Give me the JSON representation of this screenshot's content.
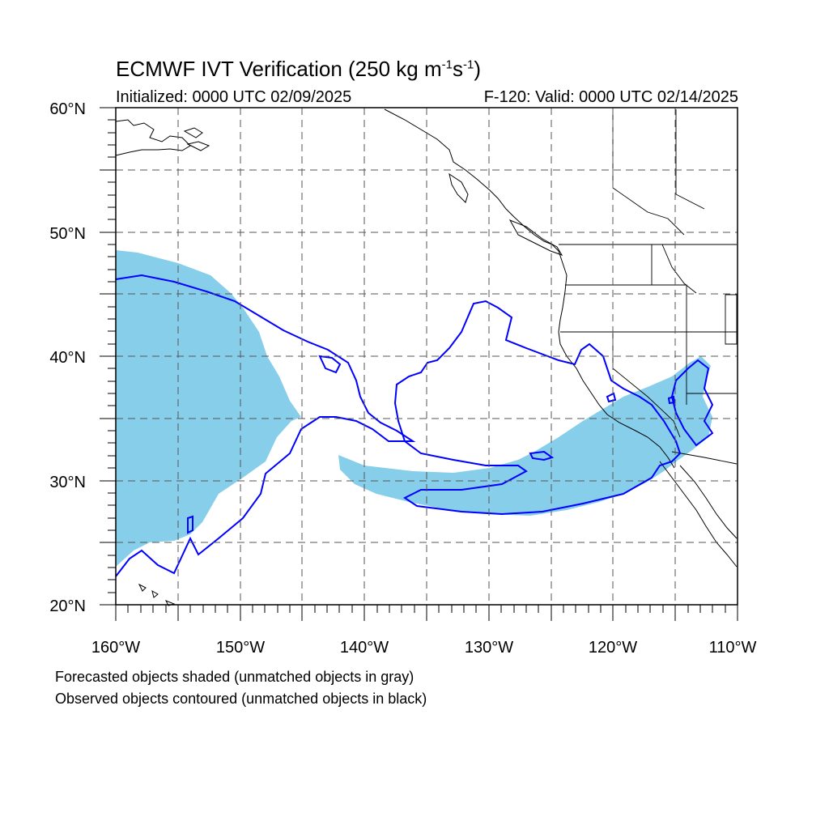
{
  "header": {
    "title_main": "ECMWF IVT Verification (250 kg m",
    "title_sup1": "-1",
    "title_mid": "s",
    "title_sup2": "-1",
    "title_end": ")",
    "initialized": "Initialized: 0000 UTC 02/09/2025",
    "valid": "F-120: Valid: 0000 UTC 02/14/2025"
  },
  "map": {
    "lon_range": [
      -160,
      -110
    ],
    "lat_range": [
      20,
      60
    ],
    "lat_labels": [
      "60°N",
      "50°N",
      "40°N",
      "30°N",
      "20°N"
    ],
    "lon_labels": [
      "160°W",
      "150°W",
      "140°W",
      "130°W",
      "120°W",
      "110°W"
    ],
    "forecast_color": "#87ceeb",
    "observed_color": "#0000ff",
    "grid_style": "dashed"
  },
  "footer": {
    "line1": "Forecasted objects shaded (unmatched objects in gray)",
    "line2": "Observed objects contoured (unmatched objects in black)"
  }
}
